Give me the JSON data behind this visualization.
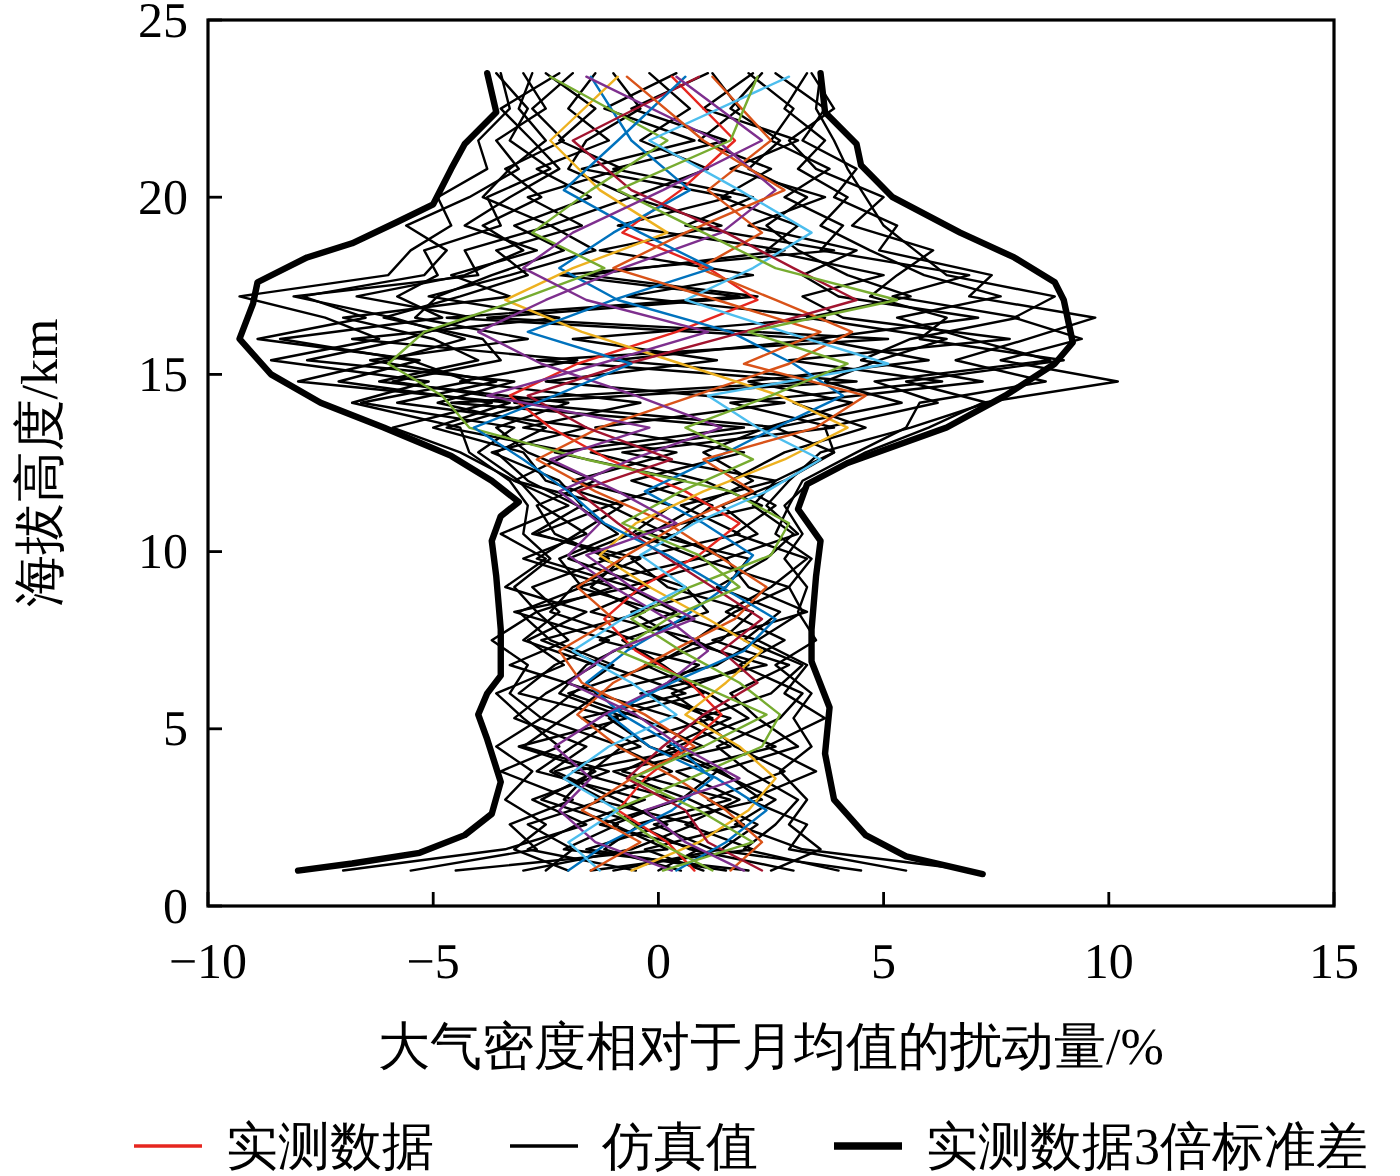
{
  "chart_data": {
    "type": "line",
    "xlabel": "大气密度相对于月均值的扰动量/%",
    "ylabel": "海拔高度/km",
    "xlim": [
      -10,
      15
    ],
    "xticks": [
      -10,
      -5,
      0,
      5,
      10,
      15
    ],
    "ylim": [
      0,
      25
    ],
    "yticks": [
      0,
      5,
      10,
      15,
      20,
      25
    ],
    "legend": "bottom",
    "series": [
      {
        "name": "实测数据",
        "color": "#e6261f",
        "x": [
          0.8,
          0.2,
          -0.9,
          -0.3,
          0.6,
          1.4,
          0.7,
          -0.5,
          -1.2,
          -0.4,
          0.9,
          1.8,
          0.6,
          -1.1,
          -2.4,
          -3.3,
          -1.8,
          0.4,
          2.2,
          1.1,
          -0.8,
          0.5,
          1.7,
          0.3
        ],
        "values": [
          1.0,
          1.8,
          2.7,
          3.6,
          4.5,
          5.4,
          6.3,
          7.2,
          8.1,
          9.0,
          9.9,
          10.8,
          11.7,
          12.6,
          13.5,
          14.4,
          15.3,
          16.2,
          17.1,
          18.0,
          19.0,
          20.2,
          21.6,
          23.4
        ]
      },
      {
        "color": "#0072bd",
        "x": [
          -2.0,
          -1.1,
          0.3,
          1.2,
          0.4,
          -0.8,
          -1.6,
          -0.7,
          0.5,
          1.5,
          2.1,
          1.0,
          -0.3,
          1.2,
          2.6,
          4.1,
          3.0,
          1.6,
          -0.9,
          -2.2,
          -1.0,
          0.7,
          -0.6,
          -1.5
        ],
        "values": [
          1.0,
          1.8,
          2.7,
          3.6,
          4.5,
          5.4,
          6.3,
          7.2,
          8.1,
          9.0,
          9.9,
          10.8,
          11.7,
          12.6,
          13.5,
          14.4,
          15.3,
          16.2,
          17.1,
          18.0,
          19.0,
          20.2,
          21.6,
          23.4
        ]
      },
      {
        "color": "#d95319",
        "x": [
          1.6,
          2.3,
          1.5,
          0.4,
          -0.9,
          -1.8,
          -1.0,
          0.3,
          1.7,
          2.4,
          1.3,
          0.2,
          -1.4,
          -2.7,
          -1.3,
          0.8,
          2.9,
          4.3,
          2.6,
          0.9,
          2.3,
          1.1,
          2.5,
          1.2
        ],
        "values": [
          1.0,
          1.8,
          2.7,
          3.6,
          4.5,
          5.4,
          6.3,
          7.2,
          8.1,
          9.0,
          9.9,
          10.8,
          11.7,
          12.6,
          13.5,
          14.4,
          15.3,
          16.2,
          17.1,
          18.0,
          19.0,
          20.2,
          21.6,
          23.4
        ]
      },
      {
        "color": "#edb120",
        "x": [
          -0.6,
          0.9,
          2.0,
          2.6,
          1.8,
          0.6,
          1.5,
          2.3,
          1.1,
          -0.2,
          -1.3,
          -0.5,
          1.0,
          2.8,
          4.2,
          2.7,
          0.5,
          -1.7,
          -3.4,
          -1.9,
          0.2,
          -1.3,
          -2.4,
          -0.9
        ],
        "values": [
          1.0,
          1.8,
          2.7,
          3.6,
          4.5,
          5.4,
          6.3,
          7.2,
          8.1,
          9.0,
          9.9,
          10.8,
          11.7,
          12.6,
          13.5,
          14.4,
          15.3,
          16.2,
          17.1,
          18.0,
          19.0,
          20.2,
          21.6,
          23.4
        ]
      },
      {
        "color": "#7e2f8e",
        "x": [
          0.3,
          -1.4,
          -2.2,
          -1.5,
          -2.3,
          -1.2,
          0.2,
          1.1,
          0.2,
          -1.0,
          -2.0,
          -1.3,
          -2.2,
          -0.6,
          1.4,
          -0.5,
          -2.6,
          -4.0,
          -2.5,
          -0.8,
          1.4,
          2.6,
          1.3,
          -1.6
        ],
        "values": [
          1.0,
          1.8,
          2.7,
          3.6,
          4.5,
          5.4,
          6.3,
          7.2,
          8.1,
          9.0,
          9.9,
          10.8,
          11.7,
          12.6,
          13.5,
          14.4,
          15.3,
          16.2,
          17.1,
          18.0,
          19.0,
          20.2,
          21.6,
          23.4
        ]
      },
      {
        "color": "#77ac30",
        "x": [
          1.2,
          0.0,
          -1.0,
          0.7,
          2.3,
          2.7,
          1.8,
          0.5,
          -0.6,
          0.7,
          2.5,
          2.9,
          1.6,
          -1.6,
          -4.2,
          -4.8,
          -6.0,
          -5.2,
          -3.1,
          -1.2,
          -2.8,
          -1.5,
          0.2,
          -2.4
        ],
        "values": [
          1.0,
          1.8,
          2.7,
          3.6,
          4.5,
          5.4,
          6.3,
          7.2,
          8.1,
          9.0,
          9.9,
          10.8,
          11.7,
          12.6,
          13.5,
          14.4,
          15.3,
          16.2,
          17.1,
          18.0,
          19.0,
          20.2,
          21.6,
          23.4
        ]
      },
      {
        "color": "#4dbeee",
        "x": [
          -1.3,
          -2.0,
          -0.9,
          -2.1,
          -1.1,
          0.4,
          -0.6,
          -1.9,
          -0.8,
          0.6,
          -0.4,
          0.8,
          2.4,
          3.6,
          2.2,
          1.1,
          5.1,
          2.8,
          0.6,
          2.1,
          3.4,
          1.8,
          -0.2,
          2.9
        ],
        "values": [
          1.0,
          1.8,
          2.7,
          3.6,
          4.5,
          5.4,
          6.3,
          7.2,
          8.1,
          9.0,
          9.9,
          10.8,
          11.7,
          12.6,
          13.5,
          14.4,
          15.3,
          16.2,
          17.1,
          18.0,
          19.0,
          20.2,
          21.6,
          23.4
        ]
      },
      {
        "color": "#a2142f",
        "x": [
          2.3,
          1.1,
          0.6,
          -0.7,
          0.1,
          1.0,
          2.2,
          1.4,
          2.3,
          1.2,
          0.1,
          -0.9,
          -1.8,
          0.3,
          -1.6,
          -2.9,
          -0.7,
          1.9,
          4.4,
          3.0,
          1.5,
          -0.6,
          -1.9,
          0.9
        ],
        "values": [
          1.0,
          1.8,
          2.7,
          3.6,
          4.5,
          5.4,
          6.3,
          7.2,
          8.1,
          9.0,
          9.9,
          10.8,
          11.7,
          12.6,
          13.5,
          14.4,
          15.3,
          16.2,
          17.1,
          18.0,
          19.0,
          20.2,
          21.6,
          23.4
        ]
      },
      {
        "color": "#0072bd",
        "x": [
          0.4,
          1.5,
          2.4,
          1.3,
          -0.2,
          -1.1,
          0.3,
          1.9,
          2.6,
          1.4,
          0.2,
          -1.2,
          -2.0,
          -3.0,
          -4.1,
          -2.3,
          -0.6,
          -2.9,
          -1.0,
          1.2,
          -0.4,
          -2.1,
          -0.9,
          0.6
        ],
        "values": [
          1.0,
          1.8,
          2.7,
          3.6,
          4.5,
          5.4,
          6.3,
          7.2,
          8.1,
          9.0,
          9.9,
          10.8,
          11.7,
          12.6,
          13.5,
          14.4,
          15.3,
          16.2,
          17.1,
          18.0,
          19.0,
          20.2,
          21.6,
          23.4
        ]
      },
      {
        "color": "#d95319",
        "x": [
          -1.5,
          -0.4,
          -1.7,
          -0.6,
          0.8,
          -0.3,
          -1.7,
          -2.2,
          -1.0,
          -1.8,
          -0.7,
          0.5,
          2.1,
          1.0,
          3.5,
          4.6,
          1.9,
          3.6,
          1.3,
          -1.0,
          0.6,
          2.8,
          1.0,
          -0.7
        ],
        "values": [
          1.0,
          1.8,
          2.7,
          3.6,
          4.5,
          5.4,
          6.3,
          7.2,
          8.1,
          9.0,
          9.9,
          10.8,
          11.7,
          12.6,
          13.5,
          14.4,
          15.3,
          16.2,
          17.1,
          18.0,
          19.0,
          20.2,
          21.6,
          23.4
        ]
      },
      {
        "color": "#77ac30",
        "x": [
          0.1,
          2.1,
          0.9,
          -0.6,
          1.0,
          2.4,
          0.8,
          -0.9,
          0.2,
          1.8,
          0.9,
          -0.8,
          0.5,
          2.1,
          0.6,
          2.5,
          4.2,
          2.0,
          5.3,
          2.6,
          1.0,
          -0.9,
          1.6,
          2.2
        ],
        "values": [
          1.0,
          1.8,
          2.7,
          3.6,
          4.5,
          5.4,
          6.3,
          7.2,
          8.1,
          9.0,
          9.9,
          10.8,
          11.7,
          12.6,
          13.5,
          14.4,
          15.3,
          16.2,
          17.1,
          18.0,
          19.0,
          20.2,
          21.6,
          23.4
        ]
      },
      {
        "color": "#7e2f8e",
        "x": [
          1.9,
          0.6,
          -0.3,
          1.8,
          0.5,
          -0.5,
          -2.0,
          -1.0,
          0.8,
          -0.6,
          -1.6,
          0.4,
          -0.9,
          -2.4,
          -0.2,
          -3.8,
          -1.3,
          1.1,
          -1.6,
          -3.0,
          -1.9,
          0.1,
          2.3,
          0.4
        ],
        "values": [
          1.0,
          1.8,
          2.7,
          3.6,
          4.5,
          5.4,
          6.3,
          7.2,
          8.1,
          9.0,
          9.9,
          10.8,
          11.7,
          12.6,
          13.5,
          14.4,
          15.3,
          16.2,
          17.1,
          18.0,
          19.0,
          20.2,
          21.6,
          23.4
        ]
      },
      {
        "name": "仿真值",
        "color": "#000000",
        "x": [
          -2.0,
          -3.2,
          -2.5,
          -3.4,
          -2.8,
          -3.6,
          -2.6,
          -3.3,
          -2.9,
          -3.7,
          -2.7,
          -3.2,
          -2.4,
          -3.0,
          -2.9,
          -3.3,
          -4.2,
          -4.4,
          -6.8,
          -5.1,
          -8.6,
          -6.2,
          -7.4,
          -9.3,
          -6.0,
          -5.5,
          -4.6,
          -4.9,
          -3.8,
          -4.0,
          -3.3,
          -3.5
        ],
        "values": [
          1.0,
          1.6,
          2.3,
          3.0,
          3.8,
          4.5,
          5.3,
          6.0,
          6.8,
          7.5,
          8.3,
          9.0,
          9.8,
          10.5,
          11.3,
          12.0,
          12.8,
          13.5,
          14.2,
          14.8,
          15.4,
          16.0,
          16.6,
          17.2,
          17.8,
          18.5,
          19.2,
          20.0,
          20.8,
          21.6,
          22.5,
          23.5
        ]
      },
      {
        "color": "#000000",
        "x": [
          2.5,
          3.6,
          2.9,
          3.3,
          2.7,
          3.4,
          3.0,
          3.4,
          2.6,
          3.5,
          3.1,
          3.3,
          2.8,
          3.2,
          2.8,
          3.4,
          4.6,
          6.0,
          7.2,
          10.2,
          7.6,
          9.4,
          7.9,
          8.8,
          6.4,
          5.7,
          5.0,
          4.6,
          4.2,
          3.9,
          3.5,
          3.6
        ],
        "values": [
          1.0,
          1.6,
          2.3,
          3.0,
          3.8,
          4.5,
          5.3,
          6.0,
          6.8,
          7.5,
          8.3,
          9.0,
          9.8,
          10.5,
          11.3,
          12.0,
          12.8,
          13.5,
          14.2,
          14.8,
          15.4,
          16.0,
          16.6,
          17.2,
          17.8,
          18.5,
          19.2,
          20.0,
          20.8,
          21.6,
          22.5,
          23.5
        ]
      },
      {
        "color": "#000000",
        "x": [
          0.5,
          -1.2,
          -0.4,
          -2.1,
          -1.5,
          -0.8,
          -2.6,
          -1.9,
          -1.0,
          -2.4,
          -3.1,
          -1.7,
          -2.2,
          -0.9,
          -1.8,
          -2.9,
          -3.6,
          -2.5,
          -4.9,
          -3.2,
          -7.8,
          -5.6,
          -4.1,
          -6.7,
          -4.3,
          -3.0,
          -3.9,
          -2.6,
          -3.4,
          -2.1,
          -2.8,
          -1.9
        ],
        "values": [
          1.0,
          1.6,
          2.3,
          3.0,
          3.8,
          4.5,
          5.3,
          6.0,
          6.8,
          7.5,
          8.3,
          9.0,
          9.8,
          10.5,
          11.3,
          12.0,
          12.8,
          13.5,
          14.2,
          14.8,
          15.4,
          16.0,
          16.6,
          17.2,
          17.8,
          18.5,
          19.2,
          20.0,
          20.8,
          21.6,
          22.5,
          23.5
        ]
      },
      {
        "color": "#000000",
        "x": [
          -1.0,
          1.4,
          2.2,
          1.1,
          2.8,
          1.7,
          0.9,
          2.5,
          3.2,
          1.9,
          2.7,
          1.3,
          2.4,
          3.0,
          2.1,
          2.6,
          3.9,
          3.7,
          6.2,
          4.8,
          8.7,
          6.9,
          5.3,
          7.6,
          5.9,
          4.7,
          3.6,
          4.2,
          3.1,
          3.7,
          2.8,
          3.3
        ],
        "values": [
          1.0,
          1.6,
          2.3,
          3.0,
          3.8,
          4.5,
          5.3,
          6.0,
          6.8,
          7.5,
          8.3,
          9.0,
          9.8,
          10.5,
          11.3,
          12.0,
          12.8,
          13.5,
          14.2,
          14.8,
          15.4,
          16.0,
          16.6,
          17.2,
          17.8,
          18.5,
          19.2,
          20.0,
          20.8,
          21.6,
          22.5,
          23.5
        ]
      },
      {
        "color": "#000000",
        "x": [
          -3.0,
          -0.6,
          0.8,
          -1.4,
          0.3,
          -0.9,
          1.2,
          -0.2,
          0.9,
          -1.3,
          0.4,
          -0.7,
          1.5,
          0.2,
          -1.1,
          0.6,
          -2.3,
          1.9,
          -4.6,
          3.4,
          -2.7,
          5.1,
          -3.8,
          2.2,
          -1.6,
          2.8,
          -0.9,
          1.6,
          -1.7,
          0.8,
          -1.2,
          0.4
        ],
        "values": [
          1.0,
          1.6,
          2.3,
          3.0,
          3.8,
          4.5,
          5.3,
          6.0,
          6.8,
          7.5,
          8.3,
          9.0,
          9.8,
          10.5,
          11.3,
          12.0,
          12.8,
          13.5,
          14.2,
          14.8,
          15.4,
          16.0,
          16.6,
          17.2,
          17.8,
          18.5,
          19.2,
          20.0,
          20.8,
          21.6,
          22.5,
          23.5
        ]
      },
      {
        "color": "#000000",
        "x": [
          3.0,
          0.7,
          -0.5,
          1.6,
          -0.8,
          0.4,
          2.0,
          1.1,
          -0.3,
          1.4,
          2.1,
          0.2,
          -0.6,
          1.8,
          0.5,
          2.6,
          -0.8,
          3.9,
          1.6,
          6.3,
          2.9,
          7.8,
          4.1,
          3.2,
          5.0,
          2.4,
          3.1,
          1.4,
          2.5,
          0.9,
          1.8,
          1.2
        ],
        "values": [
          1.0,
          1.6,
          2.3,
          3.0,
          3.8,
          4.5,
          5.3,
          6.0,
          6.8,
          7.5,
          8.3,
          9.0,
          9.8,
          10.5,
          11.3,
          12.0,
          12.8,
          13.5,
          14.2,
          14.8,
          15.4,
          16.0,
          16.6,
          17.2,
          17.8,
          18.5,
          19.2,
          20.0,
          20.8,
          21.6,
          22.5,
          23.5
        ]
      },
      {
        "color": "#000000",
        "x": [
          -5.5,
          -2.7,
          -3.3,
          -1.9,
          -3.5,
          -2.2,
          -3.0,
          -3.6,
          -2.1,
          -2.9,
          -1.6,
          -3.4,
          -2.5,
          -3.5,
          -2.0,
          -3.2,
          -4.4,
          -5.9,
          -3.7,
          -7.1,
          -5.3,
          -8.9,
          -6.5,
          -7.9,
          -5.2,
          -4.7,
          -5.6,
          -4.2,
          -3.1,
          -3.6,
          -2.5,
          -3.0
        ],
        "values": [
          1.0,
          1.6,
          2.3,
          3.0,
          3.8,
          4.5,
          5.3,
          6.0,
          6.8,
          7.5,
          8.3,
          9.0,
          9.8,
          10.5,
          11.3,
          12.0,
          12.8,
          13.5,
          14.2,
          14.8,
          15.4,
          16.0,
          16.6,
          17.2,
          17.8,
          18.5,
          19.2,
          20.0,
          20.8,
          21.6,
          22.5,
          23.5
        ]
      },
      {
        "color": "#000000",
        "x": [
          5.5,
          2.9,
          3.3,
          2.0,
          3.5,
          2.4,
          3.7,
          2.8,
          3.3,
          2.2,
          3.2,
          2.9,
          3.4,
          2.6,
          2.9,
          3.2,
          4.4,
          5.5,
          5.8,
          8.6,
          6.6,
          8.2,
          9.7,
          6.9,
          7.4,
          4.9,
          5.3,
          3.9,
          4.4,
          3.2,
          3.7,
          2.6
        ],
        "values": [
          1.0,
          1.6,
          2.3,
          3.0,
          3.8,
          4.5,
          5.3,
          6.0,
          6.8,
          7.5,
          8.3,
          9.0,
          9.8,
          10.5,
          11.3,
          12.0,
          12.8,
          13.5,
          14.2,
          14.8,
          15.4,
          16.0,
          16.6,
          17.2,
          17.8,
          18.5,
          19.2,
          20.0,
          20.8,
          21.6,
          22.5,
          23.5
        ]
      },
      {
        "color": "#000000",
        "x": [
          1.5,
          -1.6,
          0.2,
          -0.9,
          -2.3,
          -0.4,
          -1.7,
          0.6,
          -1.2,
          -2.6,
          -0.3,
          -1.5,
          -0.8,
          -2.7,
          -1.1,
          -3.2,
          -1.9,
          -4.7,
          -2.8,
          -5.9,
          -3.5,
          -3.9,
          -6.1,
          -4.4,
          -2.9,
          -3.6,
          -1.7,
          -2.9,
          -0.8,
          -2.2,
          -1.4,
          -2.5
        ],
        "values": [
          1.0,
          1.6,
          2.3,
          3.0,
          3.8,
          4.5,
          5.3,
          6.0,
          6.8,
          7.5,
          8.3,
          9.0,
          9.8,
          10.5,
          11.3,
          12.0,
          12.8,
          13.5,
          14.2,
          14.8,
          15.4,
          16.0,
          16.6,
          17.2,
          17.8,
          18.5,
          19.2,
          20.0,
          20.8,
          21.6,
          22.5,
          23.5
        ]
      },
      {
        "color": "#000000",
        "x": [
          -1.5,
          2.1,
          0.6,
          1.8,
          0.4,
          2.6,
          1.1,
          0.3,
          2.0,
          0.8,
          1.7,
          2.9,
          0.9,
          2.2,
          1.4,
          2.8,
          3.9,
          2.6,
          5.4,
          3.7,
          4.9,
          6.4,
          3.3,
          5.6,
          4.2,
          3.1,
          2.4,
          3.3,
          2.0,
          2.7,
          1.6,
          2.3
        ],
        "values": [
          1.0,
          1.6,
          2.3,
          3.0,
          3.8,
          4.5,
          5.3,
          6.0,
          6.8,
          7.5,
          8.3,
          9.0,
          9.8,
          10.5,
          11.3,
          12.0,
          12.8,
          13.5,
          14.2,
          14.8,
          15.4,
          16.0,
          16.6,
          17.2,
          17.8,
          18.5,
          19.2,
          20.0,
          20.8,
          21.6,
          22.5,
          23.5
        ]
      },
      {
        "color": "#000000",
        "x": [
          -7.0,
          -3.4,
          -1.6,
          -2.8,
          -1.1,
          -3.0,
          -2.1,
          -1.3,
          -3.3,
          -2.0,
          -2.7,
          -1.0,
          -3.0,
          -1.6,
          -2.6,
          -3.1,
          -4.0,
          -3.2,
          -6.6,
          -4.2,
          -5.5,
          -8.4,
          -4.8,
          -5.8,
          -4.9,
          -5.2,
          -3.5,
          -3.8,
          -2.4,
          -3.3,
          -2.9,
          -3.6
        ],
        "values": [
          1.0,
          1.6,
          2.3,
          3.0,
          3.8,
          4.5,
          5.3,
          6.0,
          6.8,
          7.5,
          8.3,
          9.0,
          9.8,
          10.5,
          11.3,
          12.0,
          12.8,
          13.5,
          14.2,
          14.8,
          15.4,
          16.0,
          16.6,
          17.2,
          17.8,
          18.5,
          19.2,
          20.0,
          20.8,
          21.6,
          22.5,
          23.5
        ]
      },
      {
        "color": "#000000",
        "x": [
          7.0,
          3.2,
          1.7,
          2.6,
          1.3,
          3.1,
          2.2,
          1.6,
          2.9,
          1.2,
          3.3,
          2.0,
          1.5,
          3.1,
          2.4,
          2.9,
          3.6,
          5.6,
          7.3,
          5.5,
          9.0,
          5.8,
          6.4,
          4.7,
          5.3,
          6.1,
          4.3,
          5.0,
          3.5,
          2.9,
          3.9,
          3.4
        ],
        "values": [
          1.0,
          1.6,
          2.3,
          3.0,
          3.8,
          4.5,
          5.3,
          6.0,
          6.8,
          7.5,
          8.3,
          9.0,
          9.8,
          10.5,
          11.3,
          12.0,
          12.8,
          13.5,
          14.2,
          14.8,
          15.4,
          16.0,
          16.6,
          17.2,
          17.8,
          18.5,
          19.2,
          20.0,
          20.8,
          21.6,
          22.5,
          23.5
        ]
      },
      {
        "color": "#000000",
        "x": [
          0.0,
          0.9,
          -1.3,
          0.5,
          1.3,
          -0.2,
          -1.1,
          1.0,
          0.1,
          -0.8,
          1.1,
          0.6,
          -1.3,
          0.4,
          1.2,
          -0.6,
          1.9,
          -1.4,
          2.8,
          -2.5,
          1.3,
          -1.9,
          3.7,
          -0.7,
          2.1,
          -1.3,
          1.4,
          -0.6,
          1.1,
          -0.4,
          0.7,
          -0.2
        ],
        "values": [
          1.0,
          1.6,
          2.3,
          3.0,
          3.8,
          4.5,
          5.3,
          6.0,
          6.8,
          7.5,
          8.3,
          9.0,
          9.8,
          10.5,
          11.3,
          12.0,
          12.8,
          13.5,
          14.2,
          14.8,
          15.4,
          16.0,
          16.6,
          17.2,
          17.8,
          18.5,
          19.2,
          20.0,
          20.8,
          21.6,
          22.5,
          23.5
        ]
      },
      {
        "color": "#000000",
        "x": [
          2.0,
          -2.1,
          -0.9,
          -2.6,
          -1.4,
          -3.1,
          -0.7,
          -2.2,
          -1.6,
          -0.5,
          -2.4,
          -1.9,
          -0.4,
          -2.8,
          -1.7,
          -2.2,
          -3.7,
          -1.6,
          -5.8,
          -3.6,
          -6.4,
          -2.9,
          -5.4,
          -4.9,
          -3.7,
          -2.1,
          -3.2,
          -1.5,
          -2.7,
          -1.1,
          -2.0,
          -1.4
        ],
        "values": [
          1.0,
          1.6,
          2.3,
          3.0,
          3.8,
          4.5,
          5.3,
          6.0,
          6.8,
          7.5,
          8.3,
          9.0,
          9.8,
          10.5,
          11.3,
          12.0,
          12.8,
          13.5,
          14.2,
          14.8,
          15.4,
          16.0,
          16.6,
          17.2,
          17.8,
          18.5,
          19.2,
          20.0,
          20.8,
          21.6,
          22.5,
          23.5
        ]
      },
      {
        "color": "#000000",
        "x": [
          1.0,
          -0.3,
          1.9,
          0.7,
          -1.0,
          1.6,
          0.4,
          -1.4,
          1.3,
          2.2,
          0.1,
          -1.8,
          0.9,
          -0.5,
          2.3,
          1.0,
          -1.5,
          2.7,
          -3.2,
          4.4,
          -1.0,
          3.6,
          -4.7,
          1.8,
          -2.2,
          3.9,
          0.6,
          2.1,
          -1.0,
          1.5,
          -0.6,
          1.1
        ],
        "values": [
          1.0,
          1.6,
          2.3,
          3.0,
          3.8,
          4.5,
          5.3,
          6.0,
          6.8,
          7.5,
          8.3,
          9.0,
          9.8,
          10.5,
          11.3,
          12.0,
          12.8,
          13.5,
          14.2,
          14.8,
          15.4,
          16.0,
          16.6,
          17.2,
          17.8,
          18.5,
          19.2,
          20.0,
          20.8,
          21.6,
          22.5,
          23.5
        ]
      },
      {
        "color": "#000000",
        "x": [
          -2.5,
          -1.9,
          -2.9,
          -1.2,
          -2.4,
          -1.6,
          -3.2,
          -2.5,
          -1.4,
          -3.0,
          -2.2,
          -2.8,
          -1.1,
          -2.3,
          -2.7,
          -1.4,
          -2.9,
          -3.6,
          -2.0,
          -6.2,
          -4.0,
          -5.0,
          -7.0,
          -3.3,
          -4.6,
          -2.7,
          -4.3,
          -3.3,
          -2.2,
          -2.8,
          -3.5,
          -2.2
        ],
        "values": [
          1.0,
          1.6,
          2.3,
          3.0,
          3.8,
          4.5,
          5.3,
          6.0,
          6.8,
          7.5,
          8.3,
          9.0,
          9.8,
          10.5,
          11.3,
          12.0,
          12.8,
          13.5,
          14.2,
          14.8,
          15.4,
          16.0,
          16.6,
          17.2,
          17.8,
          18.5,
          19.2,
          20.0,
          20.8,
          21.6,
          22.5,
          23.5
        ]
      },
      {
        "color": "#000000",
        "x": [
          4.0,
          1.9,
          2.6,
          3.1,
          2.0,
          1.3,
          2.7,
          3.2,
          1.8,
          2.8,
          1.5,
          2.5,
          3.3,
          1.7,
          2.6,
          1.6,
          2.8,
          4.6,
          3.0,
          7.2,
          4.5,
          5.6,
          8.0,
          5.2,
          6.9,
          3.6,
          4.1,
          2.8,
          3.8,
          2.5,
          3.0,
          2.0
        ],
        "values": [
          1.0,
          1.6,
          2.3,
          3.0,
          3.8,
          4.5,
          5.3,
          6.0,
          6.8,
          7.5,
          8.3,
          9.0,
          9.8,
          10.5,
          11.3,
          12.0,
          12.8,
          13.5,
          14.2,
          14.8,
          15.4,
          16.0,
          16.6,
          17.2,
          17.8,
          18.5,
          19.2,
          20.0,
          20.8,
          21.6,
          22.5,
          23.5
        ]
      },
      {
        "color": "#000000",
        "x": [
          -4.5,
          0.2,
          -1.0,
          0.4,
          -1.9,
          1.0,
          -0.4,
          -2.0,
          -0.1,
          0.9,
          -1.5,
          -0.2,
          -2.0,
          -0.6,
          0.3,
          -1.9,
          0.4,
          -3.0,
          -0.4,
          -4.4,
          -1.8,
          -6.8,
          -2.2,
          -5.1,
          -3.3,
          -1.4,
          -2.4,
          -0.6,
          -2.0,
          -1.6,
          -0.4,
          -1.0
        ],
        "values": [
          1.0,
          1.6,
          2.3,
          3.0,
          3.8,
          4.5,
          5.3,
          6.0,
          6.8,
          7.5,
          8.3,
          9.0,
          9.8,
          10.5,
          11.3,
          12.0,
          12.8,
          13.5,
          14.2,
          14.8,
          15.4,
          16.0,
          16.6,
          17.2,
          17.8,
          18.5,
          19.2,
          20.0,
          20.8,
          21.6,
          22.5,
          23.5
        ]
      },
      {
        "color": "#000000",
        "x": [
          4.5,
          1.2,
          -0.1,
          2.3,
          1.4,
          0.2,
          1.6,
          -0.4,
          2.4,
          0.5,
          -0.6,
          1.5,
          2.0,
          -0.2,
          0.9,
          2.1,
          1.0,
          2.4,
          4.3,
          2.0,
          6.0,
          3.5,
          7.1,
          4.0,
          3.2,
          4.4,
          2.0,
          3.7,
          1.6,
          3.1,
          1.0,
          2.1
        ],
        "values": [
          1.0,
          1.6,
          2.3,
          3.0,
          3.8,
          4.5,
          5.3,
          6.0,
          6.8,
          7.5,
          8.3,
          9.0,
          9.8,
          10.5,
          11.3,
          12.0,
          12.8,
          13.5,
          14.2,
          14.8,
          15.4,
          16.0,
          16.6,
          17.2,
          17.8,
          18.5,
          19.2,
          20.0,
          20.8,
          21.6,
          22.5,
          23.5
        ]
      },
      {
        "color": "#000000",
        "x": [
          -0.5,
          -2.9,
          -1.8,
          -0.3,
          -2.7,
          -1.9,
          -0.9,
          -3.1,
          -2.3,
          -1.1,
          -3.2,
          -0.6,
          -2.7,
          -1.8,
          -0.8,
          -2.5,
          -3.0,
          -5.0,
          -3.3,
          -8.0,
          -6.0,
          -4.3,
          -5.9,
          -8.1,
          -4.0,
          -4.3,
          -2.4,
          -3.9,
          -3.3,
          -2.5,
          -3.1,
          -2.8
        ],
        "values": [
          1.0,
          1.6,
          2.3,
          3.0,
          3.8,
          4.5,
          5.3,
          6.0,
          6.8,
          7.5,
          8.3,
          9.0,
          9.8,
          10.5,
          11.3,
          12.0,
          12.8,
          13.5,
          14.2,
          14.8,
          15.4,
          16.0,
          16.6,
          17.2,
          17.8,
          18.5,
          19.2,
          20.0,
          20.8,
          21.6,
          22.5,
          23.5
        ]
      },
      {
        "name": "实测数据3倍标准差",
        "color": "#000000",
        "x": [
          -8.0,
          -6.8,
          -5.3,
          -4.3,
          -3.7,
          -3.5,
          -3.8,
          -4.0,
          -3.8,
          -3.5,
          -3.5,
          -3.6,
          -3.7,
          -3.5,
          -3.1,
          -3.7,
          -4.6,
          -6.1,
          -7.5,
          -8.6,
          -9.3,
          -9.0,
          -8.9,
          -7.8,
          -6.8,
          -5.8,
          -5.0,
          -4.6,
          -4.3,
          -3.6,
          -3.8
        ],
        "values": [
          1.0,
          1.2,
          1.5,
          2.0,
          2.6,
          3.5,
          4.7,
          5.4,
          6.0,
          6.5,
          7.8,
          9.3,
          10.3,
          11.0,
          11.4,
          12.0,
          12.7,
          13.5,
          14.2,
          15.0,
          16.0,
          17.0,
          17.6,
          18.3,
          18.7,
          19.3,
          19.8,
          20.8,
          21.5,
          22.4,
          23.5
        ]
      },
      {
        "color": "#000000",
        "x": [
          7.2,
          5.5,
          4.6,
          3.9,
          3.7,
          3.8,
          3.4,
          3.4,
          3.5,
          3.6,
          3.1,
          3.3,
          4.2,
          6.4,
          7.7,
          8.8,
          9.2,
          9.0,
          8.8,
          7.9,
          6.7,
          5.2,
          4.5,
          4.4,
          3.7,
          3.6
        ],
        "values": [
          0.9,
          1.4,
          2.0,
          3.0,
          4.3,
          5.6,
          6.9,
          7.8,
          9.3,
          10.3,
          11.2,
          11.9,
          12.5,
          13.5,
          14.4,
          15.3,
          15.9,
          17.1,
          17.6,
          18.3,
          19.0,
          20.0,
          20.9,
          21.5,
          22.4,
          23.5
        ]
      }
    ]
  }
}
